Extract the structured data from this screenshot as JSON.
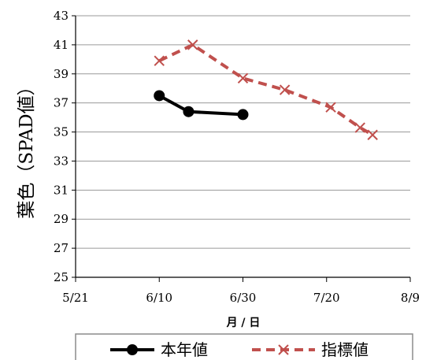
{
  "chart_data": {
    "type": "line",
    "xlabel": "月 / 日",
    "ylabel": "葉色（SPAD値）",
    "x_ticks": [
      "5/21",
      "6/10",
      "6/30",
      "7/20",
      "8/9"
    ],
    "x_tick_days": [
      0,
      20,
      40,
      60,
      80
    ],
    "ylim": [
      25,
      43
    ],
    "y_ticks": [
      25,
      27,
      29,
      31,
      33,
      35,
      37,
      39,
      41,
      43
    ],
    "grid": true,
    "legend": {
      "placement": "bottom"
    },
    "series": [
      {
        "name": "本年値",
        "color": "#000000",
        "style": "solid",
        "marker": "circle",
        "points": [
          {
            "x": "6/10",
            "y": 37.5
          },
          {
            "x": "6/17",
            "y": 36.4
          },
          {
            "x": "6/30",
            "y": 36.2
          }
        ]
      },
      {
        "name": "指標値",
        "color": "#c0504d",
        "style": "dashed",
        "marker": "x",
        "points": [
          {
            "x": "6/10",
            "y": 39.9
          },
          {
            "x": "6/18",
            "y": 41.0
          },
          {
            "x": "6/30",
            "y": 38.7
          },
          {
            "x": "7/10",
            "y": 37.9
          },
          {
            "x": "7/21",
            "y": 36.7
          },
          {
            "x": "7/28",
            "y": 35.3
          },
          {
            "x": "7/31",
            "y": 34.8
          }
        ]
      }
    ]
  }
}
